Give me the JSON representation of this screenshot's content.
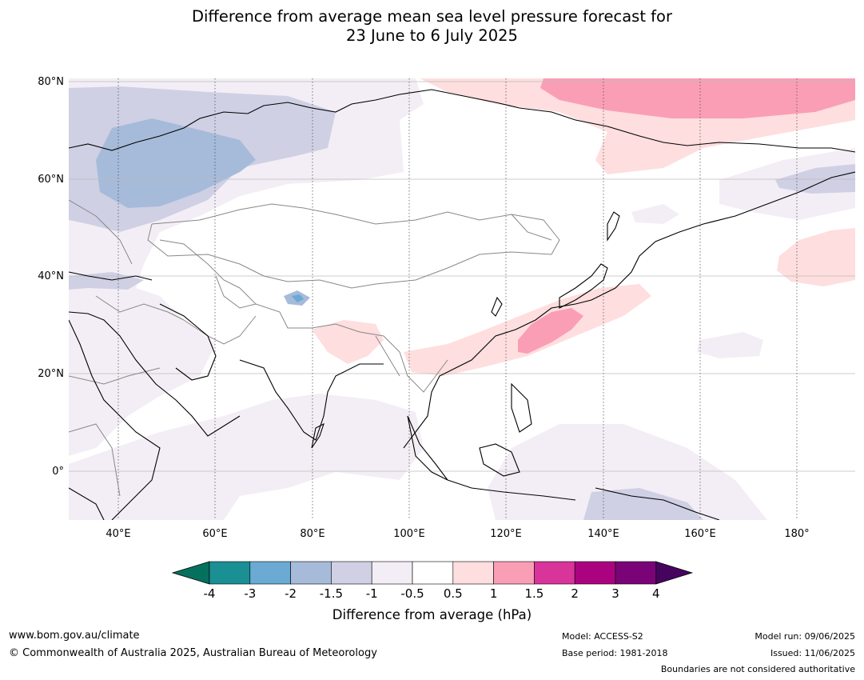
{
  "title": {
    "line1": "Difference from average mean sea level pressure forecast for",
    "line2": "23 June to 6 July 2025"
  },
  "map": {
    "lat_labels": [
      "80°N",
      "60°N",
      "40°N",
      "20°N",
      "0°"
    ],
    "lon_labels": [
      "40°E",
      "60°E",
      "80°E",
      "100°E",
      "120°E",
      "140°E",
      "160°E",
      "180°"
    ],
    "extent": {
      "lon_min": 30,
      "lon_max": 190,
      "lat_min": -10,
      "lat_max": 80
    }
  },
  "colorbar": {
    "ticks": [
      "-4",
      "-3",
      "-2",
      "-1.5",
      "-1",
      "-0.5",
      "0.5",
      "1",
      "1.5",
      "2",
      "3",
      "4"
    ],
    "colors": [
      "#1a8f94",
      "#6aaad3",
      "#a6bbd9",
      "#cfd0e4",
      "#f3eef5",
      "#ffffff",
      "#fedede",
      "#fa9eb6",
      "#d8349a",
      "#ab0380",
      "#7a0477"
    ],
    "under_color": "#05705e",
    "over_color": "#47045f",
    "label": "Difference from average (hPa)"
  },
  "footer": {
    "website": "www.bom.gov.au/climate",
    "copyright": "© Commonwealth of Australia 2025, Australian Bureau of Meteorology",
    "model": "Model: ACCESS-S2",
    "base_period": "Base period: 1981-2018",
    "model_run": "Model run: 09/06/2025",
    "issued": "Issued: 11/06/2025",
    "disclaimer": "Boundaries are not considered authoritative"
  }
}
